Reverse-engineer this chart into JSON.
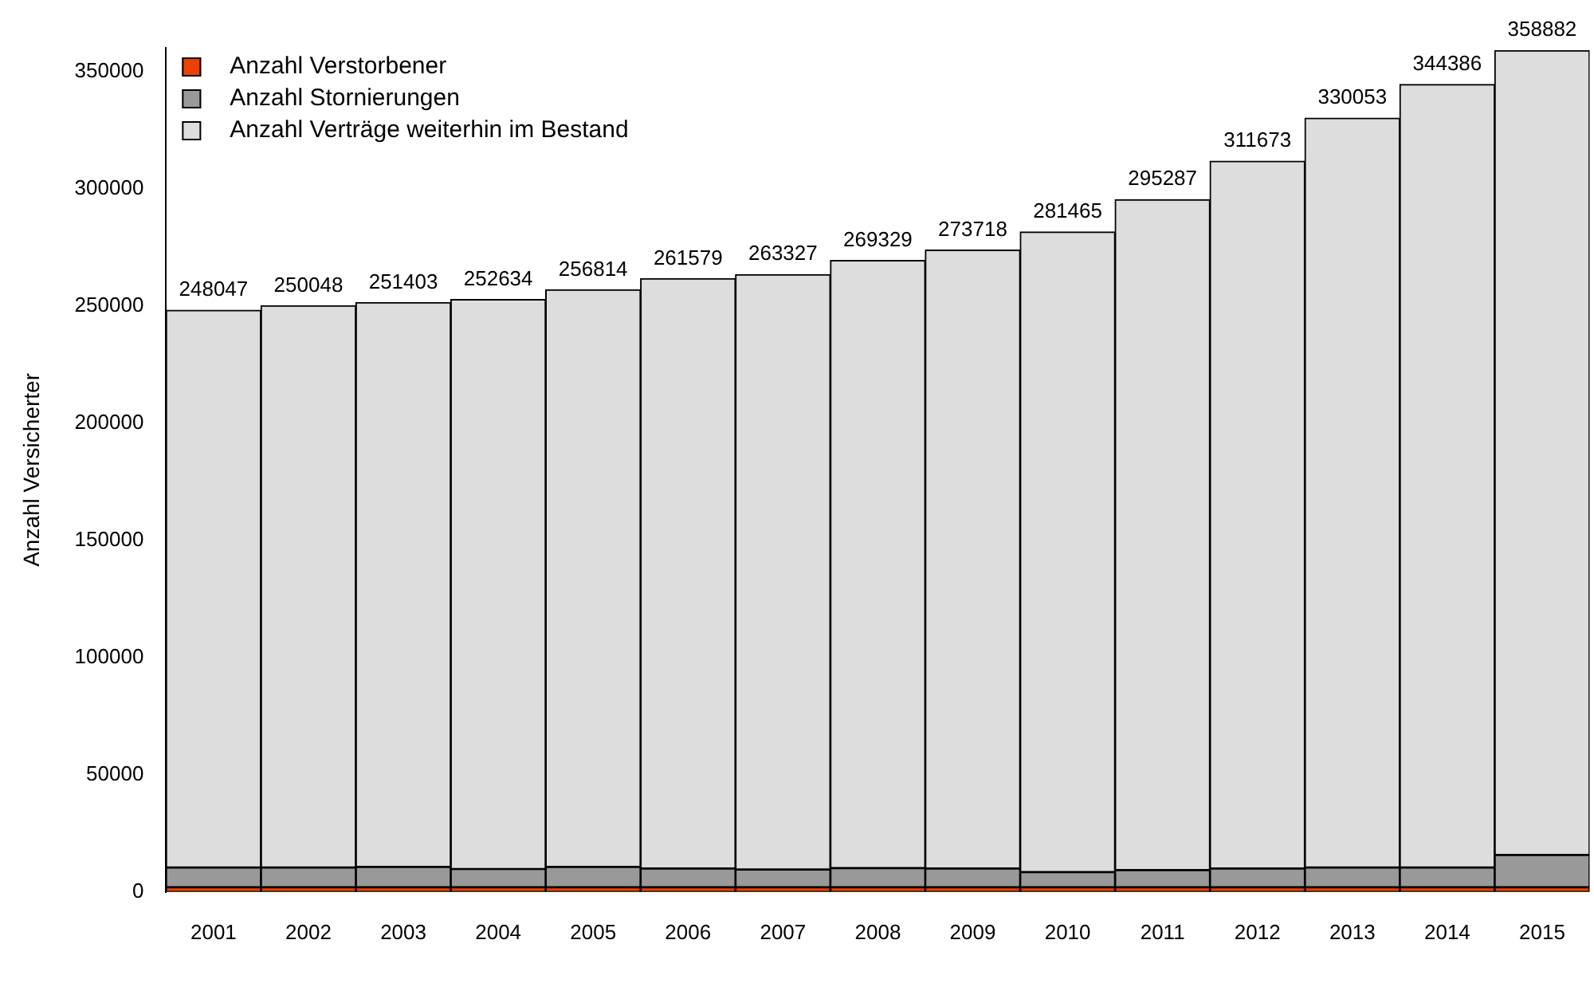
{
  "chart_data": {
    "type": "bar",
    "stacked": true,
    "ylabel": "Anzahl Versicherter",
    "categories": [
      "2001",
      "2002",
      "2003",
      "2004",
      "2005",
      "2006",
      "2007",
      "2008",
      "2009",
      "2010",
      "2011",
      "2012",
      "2013",
      "2014",
      "2015"
    ],
    "series": [
      {
        "name": "Anzahl Verstorbener",
        "color": "#ee4000",
        "values": [
          2000,
          2000,
          2000,
          2000,
          2000,
          2000,
          2000,
          2000,
          2000,
          2000,
          2000,
          2000,
          2000,
          2000,
          2000
        ]
      },
      {
        "name": "Anzahl Stornierungen",
        "color": "#999999",
        "values": [
          8400,
          8400,
          8700,
          7800,
          8700,
          8000,
          7600,
          8200,
          8000,
          6500,
          7300,
          8000,
          8400,
          8400,
          13800
        ]
      },
      {
        "name": "Anzahl Verträge weiterhin im Bestand",
        "color": "#dddddd",
        "values": [
          237647,
          239648,
          240703,
          242834,
          246114,
          251579,
          253727,
          259129,
          263718,
          272965,
          285987,
          301673,
          319653,
          333986,
          343082
        ]
      }
    ],
    "totals": [
      "248047",
      "250048",
      "251403",
      "252634",
      "256814",
      "261579",
      "263327",
      "269329",
      "273718",
      "281465",
      "295287",
      "311673",
      "330053",
      "344386",
      "358882"
    ],
    "ylim": [
      0,
      360000
    ],
    "yticks": [
      0,
      50000,
      100000,
      150000,
      200000,
      250000,
      300000,
      350000
    ],
    "grid": false,
    "legend": "top left"
  }
}
